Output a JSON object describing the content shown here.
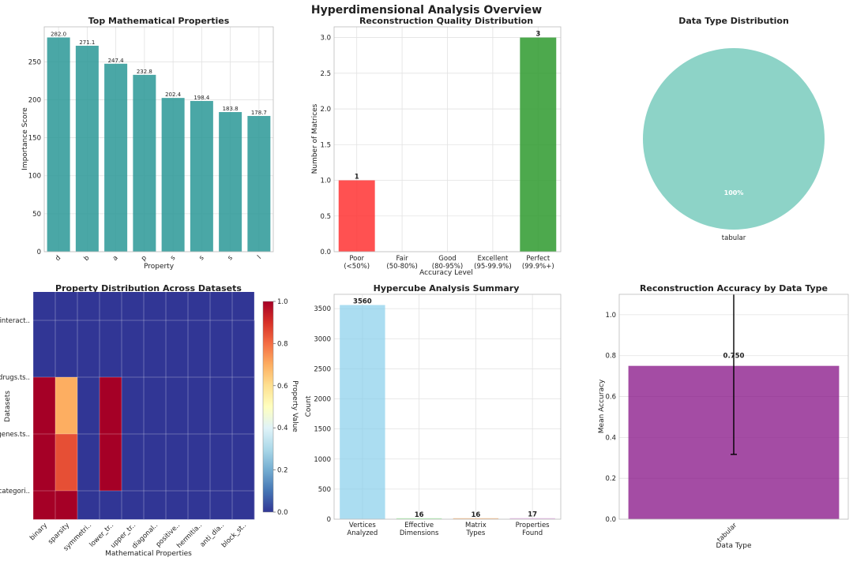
{
  "figure": {
    "title": "Hyperdimensional Analysis Overview"
  },
  "chart_data": [
    {
      "id": "top_properties",
      "type": "bar",
      "title": "Top Mathematical Properties",
      "xlabel": "Property",
      "ylabel": "Importance Score",
      "categories": [
        "d",
        "b",
        "a",
        "p",
        "s",
        "s",
        "s",
        "l"
      ],
      "values": [
        282.0,
        271.1,
        247.4,
        232.8,
        202.4,
        198.4,
        183.8,
        178.7
      ],
      "value_labels": [
        "282.0",
        "271.1",
        "247.4",
        "232.8",
        "202.4",
        "198.4",
        "183.8",
        "178.7"
      ],
      "ylim": [
        0,
        296
      ],
      "yticks": [
        0,
        50,
        100,
        150,
        200,
        250
      ],
      "grid": true,
      "color": "#2a9896"
    },
    {
      "id": "quality_distribution",
      "type": "bar",
      "title": "Reconstruction Quality Distribution",
      "xlabel": "Accuracy Level",
      "ylabel": "Number of Matrices",
      "categories": [
        [
          "Poor",
          "(<50%)"
        ],
        [
          "Fair",
          "(50-80%)"
        ],
        [
          "Good",
          "(80-95%)"
        ],
        [
          "Excellent",
          "(95-99.9%)"
        ],
        [
          "Perfect",
          "(99.9%+)"
        ]
      ],
      "values": [
        1,
        0,
        0,
        0,
        3
      ],
      "value_labels": [
        "1",
        "",
        "",
        "",
        "3"
      ],
      "ylim": [
        0,
        3.15
      ],
      "yticks": [
        0.0,
        0.5,
        1.0,
        1.5,
        2.0,
        2.5,
        3.0
      ],
      "colors": [
        "#ff3333",
        "#ffa500",
        "#ffd700",
        "#90ee90",
        "#2e9a2e"
      ],
      "grid": true
    },
    {
      "id": "data_type_distribution",
      "type": "pie",
      "title": "Data Type Distribution",
      "labels": [
        "tabular"
      ],
      "values": [
        100
      ],
      "pct_labels": [
        "100%"
      ],
      "colors": [
        "#8dd3c7"
      ]
    },
    {
      "id": "property_heatmap",
      "type": "heatmap",
      "title": "Property Distribution Across Datasets",
      "xlabel": "Mathematical Properties",
      "ylabel": "Datasets",
      "columns": [
        "binary",
        "sparsity",
        "symmetri..",
        "lower_tr..",
        "upper_tr..",
        "diagonal..",
        "positive..",
        "hermitia..",
        "anti_dia..",
        "block_st.."
      ],
      "rows": [
        "interact..",
        "drugs.ts..",
        "genes.ts..",
        "categori.."
      ],
      "values": [
        [
          0.0,
          0.0,
          0.0,
          0.0,
          0.0,
          0.0,
          0.0,
          0.0,
          0.0,
          0.0
        ],
        [
          1.0,
          0.7,
          0.0,
          1.0,
          0.0,
          0.0,
          0.0,
          0.0,
          0.0,
          0.0
        ],
        [
          1.0,
          0.85,
          0.0,
          1.0,
          0.0,
          0.0,
          0.0,
          0.0,
          0.0,
          0.0
        ],
        [
          1.0,
          1.0,
          0.0,
          0.0,
          0.0,
          0.0,
          0.0,
          0.0,
          0.0,
          0.0
        ]
      ],
      "row_offset": 0.5,
      "colormap": "RdYlBu_r",
      "vmin": 0.0,
      "vmax": 1.0,
      "colorbar_label": "Property Value",
      "colorbar_ticks": [
        "0.0",
        "0.2",
        "0.4",
        "0.6",
        "0.8",
        "1.0"
      ]
    },
    {
      "id": "hypercube_summary",
      "type": "bar",
      "title": "Hypercube Analysis Summary",
      "ylabel": "Count",
      "categories": [
        [
          "Vertices",
          "Analyzed"
        ],
        [
          "Effective",
          "Dimensions"
        ],
        [
          "Matrix",
          "Types"
        ],
        [
          "Properties",
          "Found"
        ]
      ],
      "values": [
        3560,
        16,
        16,
        17
      ],
      "value_labels": [
        "3560",
        "16",
        "16",
        "17"
      ],
      "ylim": [
        0,
        3738
      ],
      "yticks": [
        0,
        500,
        1000,
        1500,
        2000,
        2500,
        3000,
        3500
      ],
      "colors": [
        "#87ceeb",
        "#90ee90",
        "#f4a460",
        "#dda0dd"
      ],
      "grid": true
    },
    {
      "id": "accuracy_by_type",
      "type": "bar",
      "title": "Reconstruction Accuracy by Data Type",
      "xlabel": "Data Type",
      "ylabel": "Mean Accuracy",
      "categories": [
        "tabular"
      ],
      "values": [
        0.75
      ],
      "errors": [
        0.433
      ],
      "value_labels": [
        "0.750"
      ],
      "ylim": [
        0,
        1.1
      ],
      "yticks": [
        0.0,
        0.2,
        0.4,
        0.6,
        0.8,
        1.0
      ],
      "color": "#8b1a8b",
      "grid": true
    }
  ]
}
